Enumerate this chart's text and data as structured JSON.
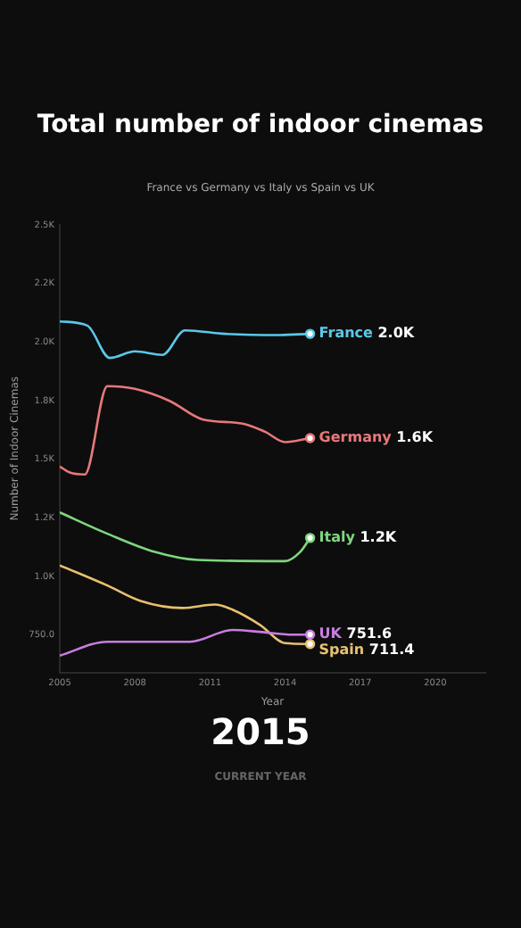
{
  "chart_data": {
    "type": "line",
    "title": "Total number of indoor cinemas",
    "subtitle": "France vs Germany vs Italy vs Spain vs UK",
    "xlabel": "Year",
    "ylabel": "Number of Indoor Cinemas",
    "annotations": [
      "2015",
      "CURRENT YEAR"
    ],
    "xlim": [
      2005,
      2022
    ],
    "xticks": [
      2005,
      2008,
      2011,
      2014,
      2017,
      2020
    ],
    "ylim": [
      590,
      2500
    ],
    "yticks": [
      {
        "value": 750,
        "label": "750.0"
      },
      {
        "value": 1000,
        "label": "1.0K"
      },
      {
        "value": 1250,
        "label": "1.2K"
      },
      {
        "value": 1500,
        "label": "1.5K"
      },
      {
        "value": 1750,
        "label": "1.8K"
      },
      {
        "value": 2000,
        "label": "2.0K"
      },
      {
        "value": 2250,
        "label": "2.2K"
      },
      {
        "value": 2500,
        "label": "2.5K"
      }
    ],
    "grid": false,
    "legend": false,
    "series": [
      {
        "name": "France",
        "color": "#5bc8e8",
        "x": [
          2005,
          2006.1,
          2007,
          2008,
          2009.1,
          2010,
          2011.6,
          2013.8,
          2015
        ],
        "values": [
          2088,
          2070,
          1932,
          1960,
          1945,
          2050,
          2035,
          2030,
          2035
        ],
        "value_labels": [
          null,
          null,
          null,
          null,
          null,
          null,
          null,
          null,
          "2.0K"
        ]
      },
      {
        "name": "Germany",
        "color": "#e8787a",
        "x": [
          2005,
          2005.4,
          2006,
          2006.9,
          2008,
          2009.4,
          2010.7,
          2012.3,
          2013.2,
          2014,
          2015
        ],
        "values": [
          1469,
          1443,
          1435,
          1812,
          1800,
          1748,
          1670,
          1652,
          1617,
          1573,
          1590
        ],
        "value_labels": [
          null,
          null,
          null,
          null,
          null,
          null,
          null,
          null,
          null,
          null,
          "1.6K"
        ]
      },
      {
        "name": "Italy",
        "color": "#7ed67e",
        "x": [
          2005,
          2006.9,
          2008.8,
          2010.5,
          2014,
          2014.6,
          2015
        ],
        "values": [
          1273,
          1182,
          1104,
          1070,
          1065,
          1104,
          1164
        ],
        "value_labels": [
          null,
          null,
          null,
          null,
          null,
          null,
          "1.2K"
        ]
      },
      {
        "name": "UK",
        "color": "#c77de0",
        "x": [
          2005,
          2006.9,
          2010.2,
          2011.9,
          2013,
          2014.3,
          2015
        ],
        "values": [
          662,
          721,
          721,
          771,
          763,
          751,
          751.6
        ],
        "value_labels": [
          null,
          null,
          null,
          null,
          null,
          null,
          "751.6"
        ]
      },
      {
        "name": "Spain",
        "color": "#e8c070",
        "x": [
          2005,
          2006.9,
          2008.2,
          2009.9,
          2011.2,
          2011.9,
          2013,
          2014,
          2015
        ],
        "values": [
          1047,
          961,
          896,
          865,
          880,
          858,
          793,
          715,
          711.4
        ],
        "value_labels": [
          null,
          null,
          null,
          null,
          null,
          null,
          null,
          null,
          "711.4"
        ]
      }
    ]
  }
}
